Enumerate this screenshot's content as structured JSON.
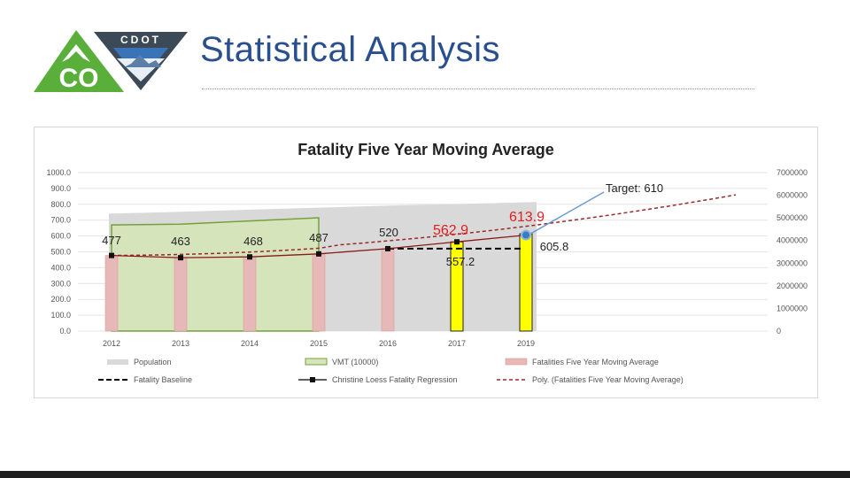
{
  "page": {
    "title": "Statistical Analysis"
  },
  "logo": {
    "co_text": "CO",
    "cdot_text": "CDOT"
  },
  "chart_data": {
    "type": "bar",
    "title": "Fatality Five Year Moving Average",
    "categories": [
      "2012",
      "2013",
      "2014",
      "2015",
      "2016",
      "2017",
      "2019"
    ],
    "y_left": {
      "ticks": [
        "1000.0",
        "900.0",
        "800.0",
        "700.0",
        "600.0",
        "500.0",
        "400.0",
        "300.0",
        "200.0",
        "100.0",
        "0.0"
      ],
      "ylim": [
        0,
        1000
      ]
    },
    "y_right": {
      "ticks": [
        "7000000",
        "6000000",
        "5000000",
        "4000000",
        "3000000",
        "2000000",
        "1000000",
        "0"
      ],
      "ylim": [
        0,
        7000000
      ]
    },
    "population": [
      5190000,
      5270000,
      5360000,
      5450000,
      5540000,
      5610000,
      5700000
    ],
    "vmt_10000": [
      670,
      675,
      695,
      715
    ],
    "fatalities_five_year_moving_average": [
      477,
      463,
      468,
      487,
      520,
      562.9,
      613.9
    ],
    "highlighted_bars": [
      "2017",
      "2019"
    ],
    "regression": [
      477,
      463,
      468,
      487,
      520,
      562.9,
      605.8
    ],
    "baseline": {
      "value": 520,
      "from": "2016",
      "to": "2019"
    },
    "poly_trend_end": 860,
    "bar_labels": [
      "477",
      "463",
      "468",
      "487",
      "520",
      "562.9",
      "613.9"
    ],
    "extra_labels": {
      "baseline_2017": "557.2",
      "regression_2019": "605.8"
    },
    "target_label": "Target: 610",
    "legend": [
      {
        "label": "Population",
        "style": "area",
        "color": "#d9d9d9"
      },
      {
        "label": "VMT (10000)",
        "style": "area-outline",
        "color": "#d6e4bc"
      },
      {
        "label": "Fatalities Five Year Moving Average",
        "style": "bar",
        "color": "#e6b8b7"
      },
      {
        "label": "Fatality Baseline",
        "style": "dashed",
        "color": "#000000"
      },
      {
        "label": "Christine Loess Fatality Regression",
        "style": "line-marker",
        "color": "#000000"
      },
      {
        "label": "Poly. (Fatalities Five Year Moving Average)",
        "style": "dotted",
        "color": "#9a2a2a"
      }
    ],
    "colors": {
      "bar": "#e6b8b7",
      "bar_highlight": "#ffff00",
      "vmt_fill": "#d6e4bc",
      "vmt_stroke": "#76a03c",
      "population": "#d9d9d9",
      "trend": "#9a2a2a",
      "regression": "#8b1a1a",
      "red_label": "#e02020",
      "target_arrow": "#6b9bd1"
    }
  }
}
